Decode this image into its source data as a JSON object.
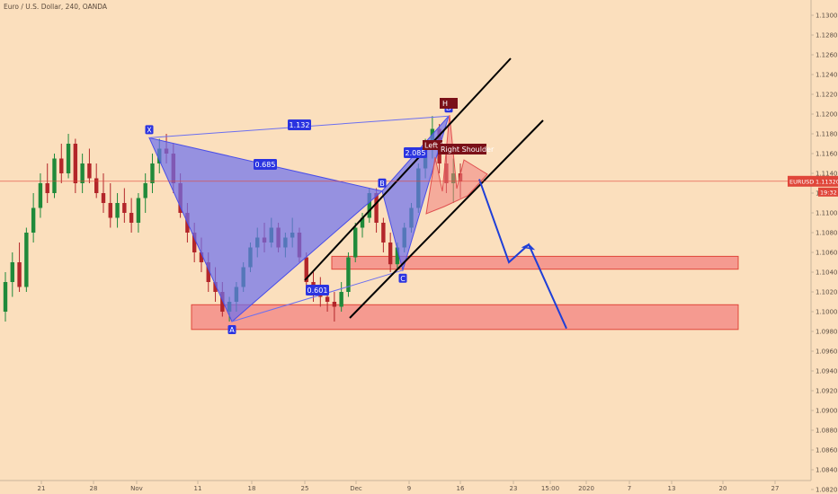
{
  "chart_data": {
    "type": "candlestick",
    "title": "Euro / U.S. Dollar, 240, OANDA",
    "symbol": "EURUSD",
    "current_price": "1.11320",
    "countdown": "19:32",
    "y_axis": {
      "range": [
        1.0816,
        1.131
      ],
      "ticks": [
        "1.13000",
        "1.12800",
        "1.12600",
        "1.12400",
        "1.12200",
        "1.12000",
        "1.11800",
        "1.11600",
        "1.11400",
        "1.11200",
        "1.11000",
        "1.10800",
        "1.10600",
        "1.10400",
        "1.10200",
        "1.10000",
        "1.09800",
        "1.09600",
        "1.09400",
        "1.09200",
        "1.09000",
        "1.08800",
        "1.08600",
        "1.08400",
        "1.08200"
      ]
    },
    "x_axis": {
      "ticks": [
        "21",
        "28",
        "Nov",
        "11",
        "18",
        "25",
        "Dec",
        "9",
        "16",
        "23",
        "15:00",
        "2020",
        "7",
        "13",
        "20",
        "27"
      ]
    },
    "harmonic_pattern": {
      "points": [
        {
          "name": "X",
          "price": 1.1176
        },
        {
          "name": "A",
          "price": 1.099
        },
        {
          "name": "B",
          "price": 1.1122
        },
        {
          "name": "C",
          "price": 1.1042
        },
        {
          "name": "D",
          "price": 1.1198
        }
      ],
      "ratios": [
        "1.132",
        "0.685",
        "0.601",
        "2.085"
      ]
    },
    "annotations": {
      "left_shoulder": "Left S",
      "head": "H",
      "right_shoulder": "Right Shoulder"
    },
    "zones": [
      {
        "name": "upper-support-zone",
        "price_top": 1.1056,
        "price_bottom": 1.1043
      },
      {
        "name": "lower-support-zone",
        "price_top": 1.1007,
        "price_bottom": 1.0982
      }
    ],
    "projection_prices": [
      1.1134,
      1.105,
      1.1068,
      1.0983
    ],
    "candles": [
      [
        1.1,
        1.104,
        1.099,
        1.103
      ],
      [
        1.103,
        1.106,
        1.1015,
        1.105
      ],
      [
        1.105,
        1.107,
        1.102,
        1.1025
      ],
      [
        1.1025,
        1.1085,
        1.102,
        1.108
      ],
      [
        1.108,
        1.112,
        1.107,
        1.1105
      ],
      [
        1.1105,
        1.114,
        1.1095,
        1.113
      ],
      [
        1.113,
        1.115,
        1.111,
        1.112
      ],
      [
        1.112,
        1.116,
        1.1115,
        1.1155
      ],
      [
        1.1155,
        1.117,
        1.113,
        1.114
      ],
      [
        1.114,
        1.118,
        1.1135,
        1.117
      ],
      [
        1.117,
        1.1175,
        1.112,
        1.113
      ],
      [
        1.113,
        1.116,
        1.112,
        1.115
      ],
      [
        1.115,
        1.1165,
        1.113,
        1.1135
      ],
      [
        1.1135,
        1.115,
        1.1115,
        1.112
      ],
      [
        1.112,
        1.114,
        1.11,
        1.111
      ],
      [
        1.111,
        1.113,
        1.1085,
        1.1095
      ],
      [
        1.1095,
        1.112,
        1.1085,
        1.111
      ],
      [
        1.111,
        1.1125,
        1.109,
        1.11
      ],
      [
        1.11,
        1.1115,
        1.108,
        1.109
      ],
      [
        1.109,
        1.112,
        1.108,
        1.1115
      ],
      [
        1.1115,
        1.114,
        1.11,
        1.113
      ],
      [
        1.113,
        1.116,
        1.112,
        1.115
      ],
      [
        1.115,
        1.1175,
        1.114,
        1.1165
      ],
      [
        1.1165,
        1.118,
        1.115,
        1.116
      ],
      [
        1.116,
        1.117,
        1.112,
        1.113
      ],
      [
        1.113,
        1.114,
        1.1095,
        1.11
      ],
      [
        1.11,
        1.111,
        1.107,
        1.108
      ],
      [
        1.108,
        1.109,
        1.105,
        1.106
      ],
      [
        1.106,
        1.1075,
        1.104,
        1.105
      ],
      [
        1.105,
        1.106,
        1.102,
        1.103
      ],
      [
        1.103,
        1.1045,
        1.101,
        1.102
      ],
      [
        1.102,
        1.103,
        1.0995,
        1.1
      ],
      [
        1.1,
        1.1015,
        1.099,
        1.101
      ],
      [
        1.101,
        1.103,
        1.1,
        1.1025
      ],
      [
        1.1025,
        1.105,
        1.102,
        1.1045
      ],
      [
        1.1045,
        1.107,
        1.104,
        1.1065
      ],
      [
        1.1065,
        1.1085,
        1.1055,
        1.1075
      ],
      [
        1.1075,
        1.109,
        1.106,
        1.107
      ],
      [
        1.107,
        1.1095,
        1.1065,
        1.1085
      ],
      [
        1.1085,
        1.109,
        1.106,
        1.1065
      ],
      [
        1.1065,
        1.108,
        1.1055,
        1.1075
      ],
      [
        1.1075,
        1.1095,
        1.1065,
        1.108
      ],
      [
        1.108,
        1.1085,
        1.105,
        1.1055
      ],
      [
        1.1055,
        1.106,
        1.102,
        1.103
      ],
      [
        1.103,
        1.104,
        1.101,
        1.1025
      ],
      [
        1.1025,
        1.1035,
        1.1005,
        1.1015
      ],
      [
        1.1015,
        1.1025,
        1.1,
        1.101
      ],
      [
        1.101,
        1.102,
        1.099,
        1.1005
      ],
      [
        1.1005,
        1.103,
        1.1,
        1.102
      ],
      [
        1.102,
        1.106,
        1.1015,
        1.1055
      ],
      [
        1.1055,
        1.109,
        1.105,
        1.1085
      ],
      [
        1.1085,
        1.11,
        1.1075,
        1.1095
      ],
      [
        1.1095,
        1.1125,
        1.109,
        1.112
      ],
      [
        1.112,
        1.1125,
        1.108,
        1.109
      ],
      [
        1.109,
        1.1095,
        1.106,
        1.107
      ],
      [
        1.107,
        1.108,
        1.104,
        1.1048
      ],
      [
        1.1048,
        1.107,
        1.1042,
        1.1065
      ],
      [
        1.1065,
        1.109,
        1.106,
        1.1085
      ],
      [
        1.1085,
        1.111,
        1.108,
        1.1105
      ],
      [
        1.1105,
        1.115,
        1.11,
        1.1145
      ],
      [
        1.1145,
        1.1175,
        1.1135,
        1.1165
      ],
      [
        1.1165,
        1.1198,
        1.1155,
        1.1185
      ],
      [
        1.1185,
        1.119,
        1.114,
        1.115
      ],
      [
        1.115,
        1.117,
        1.112,
        1.113
      ],
      [
        1.113,
        1.1155,
        1.111,
        1.114
      ],
      [
        1.114,
        1.115,
        1.1115,
        1.1132
      ]
    ]
  }
}
